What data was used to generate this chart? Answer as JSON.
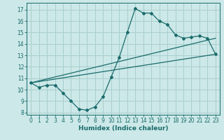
{
  "xlabel": "Humidex (Indice chaleur)",
  "background_color": "#cce8e8",
  "grid_color": "#aacece",
  "line_color": "#1a6b6b",
  "xlim": [
    -0.5,
    23.5
  ],
  "ylim": [
    7.8,
    17.6
  ],
  "xticks": [
    0,
    1,
    2,
    3,
    4,
    5,
    6,
    7,
    8,
    9,
    10,
    11,
    12,
    13,
    14,
    15,
    16,
    17,
    18,
    19,
    20,
    21,
    22,
    23
  ],
  "yticks": [
    8,
    9,
    10,
    11,
    12,
    13,
    14,
    15,
    16,
    17
  ],
  "series1_x": [
    0,
    1,
    2,
    3,
    4,
    5,
    6,
    7,
    8,
    9,
    10,
    11,
    12,
    13,
    14,
    15,
    16,
    17,
    18,
    19,
    20,
    21,
    22,
    23
  ],
  "series1_y": [
    10.6,
    10.2,
    10.4,
    10.4,
    9.7,
    9.0,
    8.3,
    8.2,
    8.5,
    9.4,
    11.1,
    12.8,
    15.0,
    17.1,
    16.7,
    16.7,
    16.0,
    15.7,
    14.8,
    14.5,
    14.6,
    14.7,
    14.5,
    13.1
  ],
  "trend1_x": [
    0,
    23
  ],
  "trend1_y": [
    10.6,
    13.1
  ],
  "trend2_x": [
    0,
    23
  ],
  "trend2_y": [
    10.6,
    14.5
  ]
}
